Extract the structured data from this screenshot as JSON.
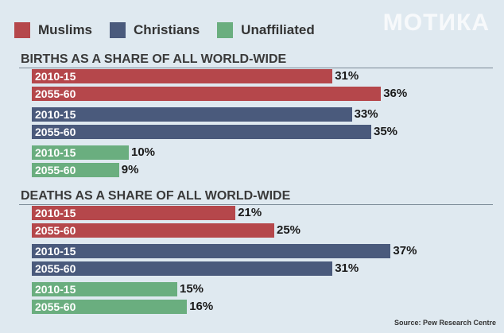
{
  "watermark": "МОТИКА",
  "legend": [
    {
      "label": "Muslims",
      "color": "#b5474b"
    },
    {
      "label": "Christians",
      "color": "#4a5a7c"
    },
    {
      "label": "Unaffiliated",
      "color": "#6aae7f"
    }
  ],
  "source": "Source: Pew Research Centre",
  "chart_data": [
    {
      "type": "bar",
      "orientation": "horizontal",
      "title": "BIRTHS AS A SHARE OF ALL WORLD-WIDE",
      "categories": [
        "2010-15",
        "2055-60"
      ],
      "unit": "%",
      "series": [
        {
          "name": "Muslims",
          "color": "#b5474b",
          "values": [
            31,
            36
          ]
        },
        {
          "name": "Christians",
          "color": "#4a5a7c",
          "values": [
            33,
            35
          ]
        },
        {
          "name": "Unaffiliated",
          "color": "#6aae7f",
          "values": [
            10,
            9
          ]
        }
      ]
    },
    {
      "type": "bar",
      "orientation": "horizontal",
      "title": "DEATHS AS A SHARE OF ALL WORLD-WIDE",
      "categories": [
        "2010-15",
        "2055-60"
      ],
      "unit": "%",
      "series": [
        {
          "name": "Muslims",
          "color": "#b5474b",
          "values": [
            21,
            25
          ]
        },
        {
          "name": "Christians",
          "color": "#4a5a7c",
          "values": [
            37,
            31
          ]
        },
        {
          "name": "Unaffiliated",
          "color": "#6aae7f",
          "values": [
            15,
            16
          ]
        }
      ]
    }
  ]
}
